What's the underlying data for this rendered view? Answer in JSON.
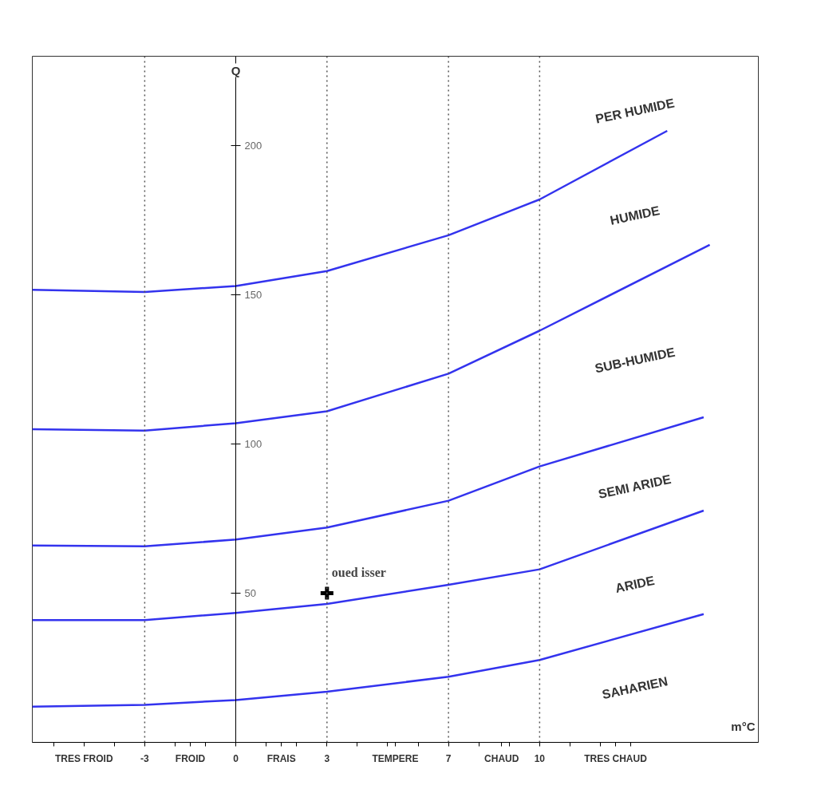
{
  "chart_data": {
    "type": "line",
    "xlabel": "m°C",
    "ylabel": "Q",
    "xlim": [
      -6.7,
      17.2
    ],
    "ylim": [
      0,
      230
    ],
    "xticks": [
      {
        "value": -6,
        "label": null
      },
      {
        "value": -5,
        "label": "TRES FROID"
      },
      {
        "value": -4,
        "label": null
      },
      {
        "value": -3,
        "label": "-3"
      },
      {
        "value": -2,
        "label": null
      },
      {
        "value": -1.5,
        "label": "FROID"
      },
      {
        "value": -1,
        "label": null
      },
      0,
      {
        "value": 1,
        "label": null
      },
      {
        "value": 1.5,
        "label": "FRAIS"
      },
      {
        "value": 2,
        "label": null
      },
      3,
      {
        "value": 4,
        "label": null
      },
      {
        "value": 5,
        "label": null
      },
      {
        "value": 5.25,
        "label": "TEMPERE"
      },
      {
        "value": 6,
        "label": null
      },
      7,
      {
        "value": 8,
        "label": null
      },
      {
        "value": 8.75,
        "label": "CHAUD"
      },
      {
        "value": 9,
        "label": null
      },
      10,
      {
        "value": 11,
        "label": null
      },
      {
        "value": 12,
        "label": null
      },
      {
        "value": 12.5,
        "label": "TRES CHAUD"
      },
      {
        "value": 13,
        "label": null
      }
    ],
    "yticks": [
      50,
      100,
      150,
      200
    ],
    "line_style": "solid",
    "marker": "none",
    "series": [
      {
        "color": "#3333ee",
        "x": [
          -6.7,
          -3,
          0,
          3,
          7,
          10,
          14.2
        ],
        "values": [
          151.7,
          151,
          153,
          158,
          170,
          182,
          205
        ]
      },
      {
        "color": "#3333ee",
        "x": [
          -6.7,
          -3,
          0,
          3,
          7,
          10,
          15.6
        ],
        "values": [
          105,
          104.5,
          107,
          111,
          123.6,
          138,
          166.8
        ]
      },
      {
        "color": "#3333ee",
        "x": [
          -6.7,
          -3,
          0,
          3,
          7,
          10,
          15.4
        ],
        "values": [
          66,
          65.7,
          68,
          72,
          81,
          92.5,
          109
        ]
      },
      {
        "color": "#3333ee",
        "x": [
          -6.7,
          -3,
          0,
          3,
          7,
          10,
          15.4
        ],
        "values": [
          41,
          41,
          43.4,
          46.4,
          52.8,
          58,
          77.7
        ]
      },
      {
        "color": "#3333ee",
        "x": [
          -6.7,
          -3,
          0,
          3,
          7,
          10,
          15.4
        ],
        "values": [
          12,
          12.6,
          14.2,
          17,
          22,
          27.6,
          43
        ]
      },
      {
        "type": "scatter",
        "marker": "cross",
        "color": "#000000",
        "x": [
          3
        ],
        "values": [
          50
        ]
      }
    ],
    "ref_lines": [
      {
        "axis": "x",
        "value": -3,
        "line_style": "dotted",
        "color": "#555555"
      },
      {
        "axis": "x",
        "value": 3,
        "line_style": "dotted",
        "color": "#555555"
      },
      {
        "axis": "x",
        "value": 7,
        "line_style": "dotted",
        "color": "#555555"
      },
      {
        "axis": "x",
        "value": 10,
        "line_style": "dotted",
        "color": "#555555"
      }
    ],
    "annotations": [
      {
        "text": "oued isser",
        "x": 3,
        "y": 50
      },
      "PER HUMIDE",
      "HUMIDE",
      "SUB-HUMIDE",
      "SEMI ARIDE",
      "ARIDE",
      "SAHARIEN"
    ]
  }
}
